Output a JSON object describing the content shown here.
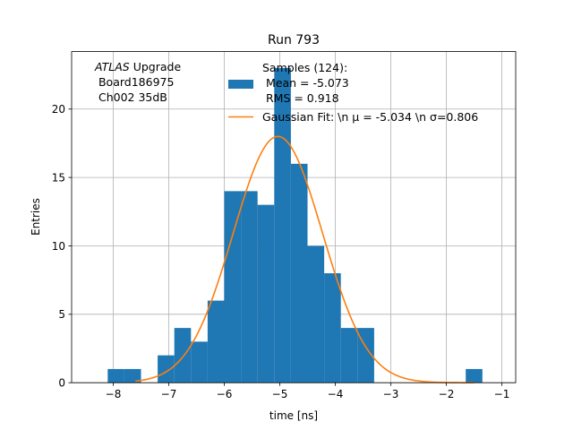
{
  "chart_data": {
    "type": "bar",
    "title": "Run 793",
    "xlabel": "time [ns]",
    "ylabel": "Entries",
    "xlim": [
      -8.75,
      -0.75
    ],
    "ylim": [
      0,
      24.2
    ],
    "xticks": [
      -8,
      -7,
      -6,
      -5,
      -4,
      -3,
      -2,
      -1
    ],
    "xtick_labels": [
      "−8",
      "−7",
      "−6",
      "−5",
      "−4",
      "−3",
      "−2",
      "−1"
    ],
    "yticks": [
      0,
      5,
      10,
      15,
      20
    ],
    "ytick_labels": [
      "0",
      "5",
      "10",
      "15",
      "20"
    ],
    "grid": true,
    "bins": [
      {
        "x0": -8.1,
        "x1": -7.8,
        "count": 1
      },
      {
        "x0": -7.8,
        "x1": -7.5,
        "count": 1
      },
      {
        "x0": -7.2,
        "x1": -6.9,
        "count": 2
      },
      {
        "x0": -6.9,
        "x1": -6.6,
        "count": 4
      },
      {
        "x0": -6.6,
        "x1": -6.3,
        "count": 3
      },
      {
        "x0": -6.3,
        "x1": -6.0,
        "count": 6
      },
      {
        "x0": -6.0,
        "x1": -5.7,
        "count": 14
      },
      {
        "x0": -5.7,
        "x1": -5.4,
        "count": 14
      },
      {
        "x0": -5.4,
        "x1": -5.1,
        "count": 13
      },
      {
        "x0": -5.1,
        "x1": -4.8,
        "count": 23
      },
      {
        "x0": -4.8,
        "x1": -4.5,
        "count": 16
      },
      {
        "x0": -4.5,
        "x1": -4.2,
        "count": 10
      },
      {
        "x0": -4.2,
        "x1": -3.9,
        "count": 8
      },
      {
        "x0": -3.9,
        "x1": -3.6,
        "count": 4
      },
      {
        "x0": -3.6,
        "x1": -3.3,
        "count": 4
      },
      {
        "x0": -1.65,
        "x1": -1.35,
        "count": 1
      }
    ],
    "fit": {
      "mu": -5.034,
      "sigma": 0.806,
      "amplitude": 18.0,
      "x_range": [
        -7.6,
        -1.5
      ]
    },
    "colors": {
      "bars": "#1f77b4",
      "fit": "#ff7f0e",
      "grid": "#b0b0b0"
    },
    "annotation": {
      "italic": "ATLAS",
      "rest": " Upgrade",
      "line2": " Board186975",
      "line3": " Ch002 35dB"
    },
    "legend": {
      "placement": "top-center",
      "samples_line1": "Samples (124):",
      "samples_line2": " Mean = -5.073",
      "samples_line3": " RMS = 0.918",
      "fit_label": "Gaussian Fit: \\n μ = -5.034 \\n σ=0.806"
    }
  }
}
